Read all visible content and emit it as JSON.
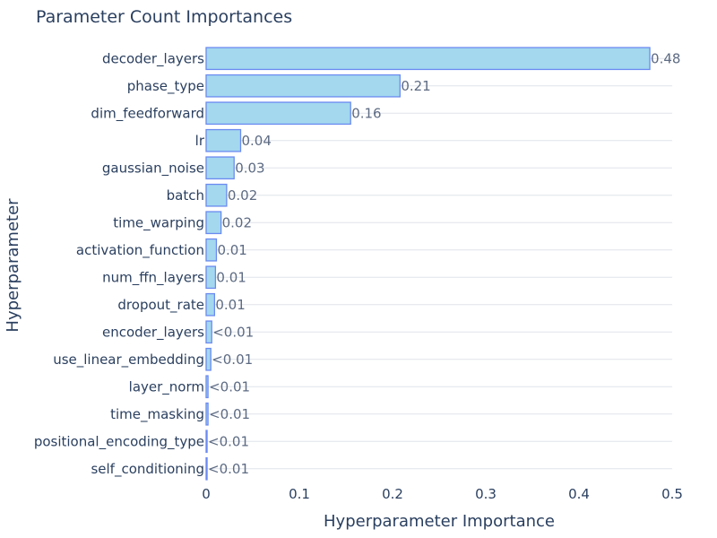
{
  "chart_data": {
    "type": "bar",
    "orientation": "horizontal",
    "title": "Parameter Count Importances",
    "xlabel": "Hyperparameter Importance",
    "ylabel": "Hyperparameter",
    "xlim": [
      0,
      0.5
    ],
    "xticks": [
      0,
      0.1,
      0.2,
      0.3,
      0.4,
      0.5
    ],
    "xtick_labels": [
      "0",
      "0.1",
      "0.2",
      "0.3",
      "0.4",
      "0.5"
    ],
    "grid": "horizontal",
    "categories": [
      "decoder_layers",
      "phase_type",
      "dim_feedforward",
      "lr",
      "gaussian_noise",
      "batch",
      "time_warping",
      "activation_function",
      "num_ffn_layers",
      "dropout_rate",
      "encoder_layers",
      "use_linear_embedding",
      "layer_norm",
      "time_masking",
      "positional_encoding_type",
      "self_conditioning"
    ],
    "values": [
      0.476,
      0.208,
      0.155,
      0.037,
      0.03,
      0.022,
      0.016,
      0.011,
      0.01,
      0.009,
      0.006,
      0.005,
      0.002,
      0.002,
      0.001,
      0.001
    ],
    "value_labels": [
      "0.48",
      "0.21",
      "0.16",
      "0.04",
      "0.03",
      "0.02",
      "0.02",
      "0.01",
      "0.01",
      "0.01",
      "<0.01",
      "<0.01",
      "<0.01",
      "<0.01",
      "<0.01",
      "<0.01"
    ],
    "colors": {
      "bar_fill": "#a3d8ef",
      "bar_stroke": "#6b8af0",
      "grid": "#dfe3ea",
      "text": "#2a3f5f"
    }
  }
}
